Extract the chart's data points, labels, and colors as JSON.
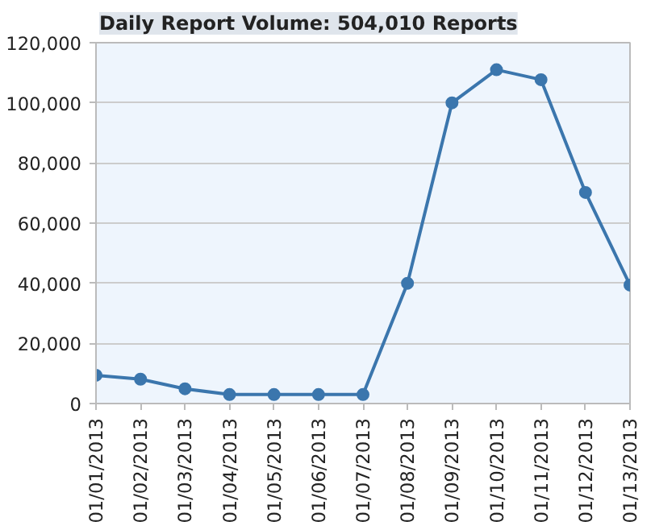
{
  "chart_data": {
    "type": "line",
    "title": "Daily Report Volume: 504,010 Reports",
    "categories": [
      "01/01/2013",
      "01/02/2013",
      "01/03/2013",
      "01/04/2013",
      "01/05/2013",
      "01/06/2013",
      "01/07/2013",
      "01/08/2013",
      "01/09/2013",
      "01/10/2013",
      "01/11/2013",
      "01/12/2013",
      "01/13/2013"
    ],
    "series": [
      {
        "color": "#3b76ad",
        "values": [
          9400,
          8100,
          4900,
          3000,
          3000,
          3000,
          3000,
          40000,
          100000,
          111000,
          107700,
          70200,
          39400
        ]
      }
    ],
    "ylim": [
      0,
      120000
    ],
    "yticks": [
      0,
      {
        "value": 20000,
        "label": "20,000"
      },
      {
        "value": 40000,
        "label": "40,000"
      },
      {
        "value": 60000,
        "label": "60,000"
      },
      {
        "value": 80000,
        "label": "80,000"
      },
      {
        "value": 100000,
        "label": "100,000"
      },
      {
        "value": 120000,
        "label": "120,000"
      }
    ],
    "grid": "y",
    "marker": "circle",
    "line_style": "solid"
  }
}
